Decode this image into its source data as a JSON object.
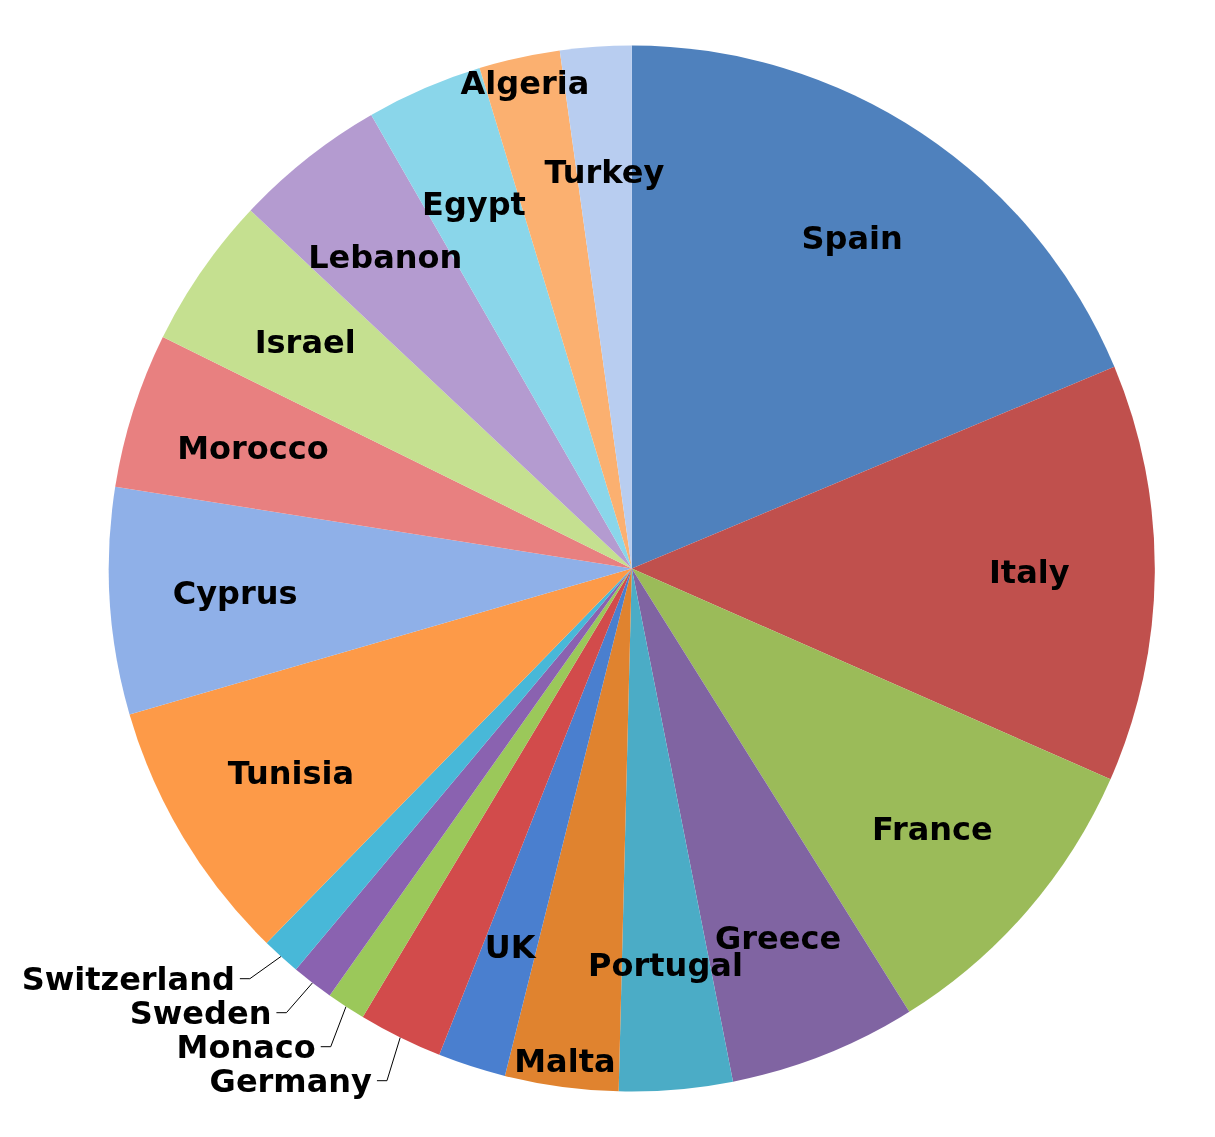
{
  "chart_data": {
    "type": "pie",
    "categories": [
      "Spain",
      "Italy",
      "France",
      "Greece",
      "Portugal",
      "Malta",
      "UK",
      "Germany",
      "Monaco",
      "Sweden",
      "Switzerland",
      "Tunisia",
      "Cyprus",
      "Morocco",
      "Israel",
      "Lebanon",
      "Egypt",
      "Algeria",
      "Turkey"
    ],
    "values": [
      18.7,
      12.9,
      9.5,
      5.8,
      3.5,
      3.5,
      2.1,
      2.6,
      1.2,
      1.3,
      1.2,
      8.2,
      7.0,
      4.8,
      4.7,
      4.7,
      3.6,
      2.5,
      2.2
    ],
    "colors": [
      "#4f81bd",
      "#c0504d",
      "#9bbb59",
      "#8064a2",
      "#4bacc6",
      "#e0832f",
      "#4a7fcf",
      "#d24b4b",
      "#9bc85a",
      "#8a62b0",
      "#48b8d8",
      "#fd9a48",
      "#8fb0e8",
      "#e88080",
      "#c5e090",
      "#b49bd0",
      "#8ad6ea",
      "#fbb070",
      "#b8cdf0"
    ],
    "legend": false
  }
}
